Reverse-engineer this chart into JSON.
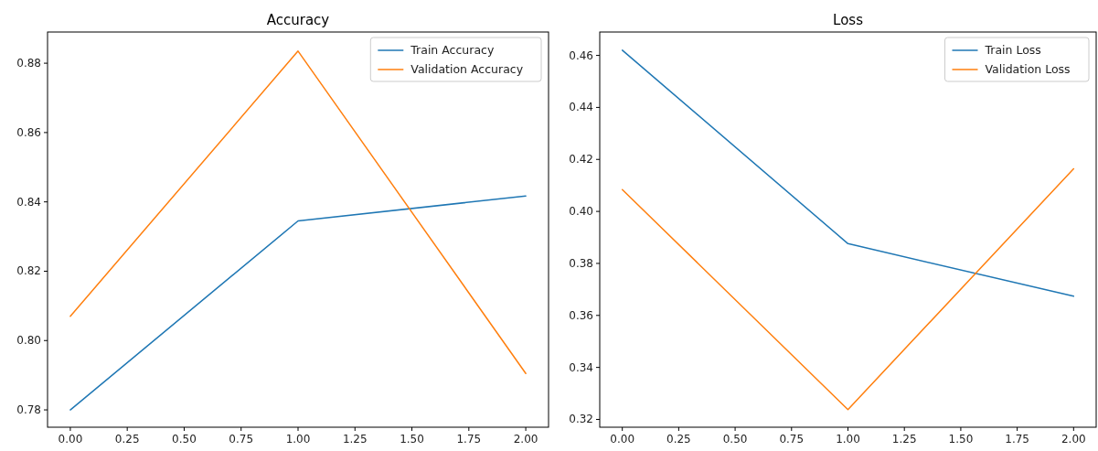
{
  "chart_data": [
    {
      "type": "line",
      "title": "Accuracy",
      "x": [
        0,
        1,
        2
      ],
      "xlim": [
        -0.1,
        2.1
      ],
      "xticks": [
        {
          "value": 0,
          "label": "0.00"
        },
        {
          "value": 0.25,
          "label": "0.25"
        },
        {
          "value": 0.5,
          "label": "0.50"
        },
        {
          "value": 0.75,
          "label": "0.75"
        },
        {
          "value": 1,
          "label": "1.00"
        },
        {
          "value": 1.25,
          "label": "1.25"
        },
        {
          "value": 1.5,
          "label": "1.50"
        },
        {
          "value": 1.75,
          "label": "1.75"
        },
        {
          "value": 2,
          "label": "2.00"
        }
      ],
      "ylim": [
        0.775,
        0.889
      ],
      "yticks": [
        0.78,
        {
          "value": 0.8,
          "label": "0.80"
        },
        0.82,
        0.84,
        0.86,
        0.88
      ],
      "legend": "top right",
      "grid": false,
      "series": [
        {
          "name": "Train Accuracy",
          "color": "#1f77b4",
          "values": [
            0.78,
            0.8345,
            0.8417
          ]
        },
        {
          "name": "Validation Accuracy",
          "color": "#ff7f0e",
          "values": [
            0.807,
            0.8835,
            0.7905
          ]
        }
      ]
    },
    {
      "type": "line",
      "title": "Loss",
      "x": [
        0,
        1,
        2
      ],
      "xlim": [
        -0.1,
        2.1
      ],
      "xticks": [
        {
          "value": 0,
          "label": "0.00"
        },
        {
          "value": 0.25,
          "label": "0.25"
        },
        {
          "value": 0.5,
          "label": "0.50"
        },
        {
          "value": 0.75,
          "label": "0.75"
        },
        {
          "value": 1,
          "label": "1.00"
        },
        {
          "value": 1.25,
          "label": "1.25"
        },
        {
          "value": 1.5,
          "label": "1.50"
        },
        {
          "value": 1.75,
          "label": "1.75"
        },
        {
          "value": 2,
          "label": "2.00"
        }
      ],
      "ylim": [
        0.317,
        0.469
      ],
      "yticks": [
        0.32,
        0.34,
        0.36,
        0.38,
        {
          "value": 0.4,
          "label": "0.40"
        },
        0.42,
        0.44,
        0.46
      ],
      "legend": "top right",
      "grid": false,
      "series": [
        {
          "name": "Train Loss",
          "color": "#1f77b4",
          "values": [
            0.462,
            0.3876,
            0.3674
          ]
        },
        {
          "name": "Validation Loss",
          "color": "#ff7f0e",
          "values": [
            0.4084,
            0.3238,
            0.4164
          ]
        }
      ]
    }
  ]
}
